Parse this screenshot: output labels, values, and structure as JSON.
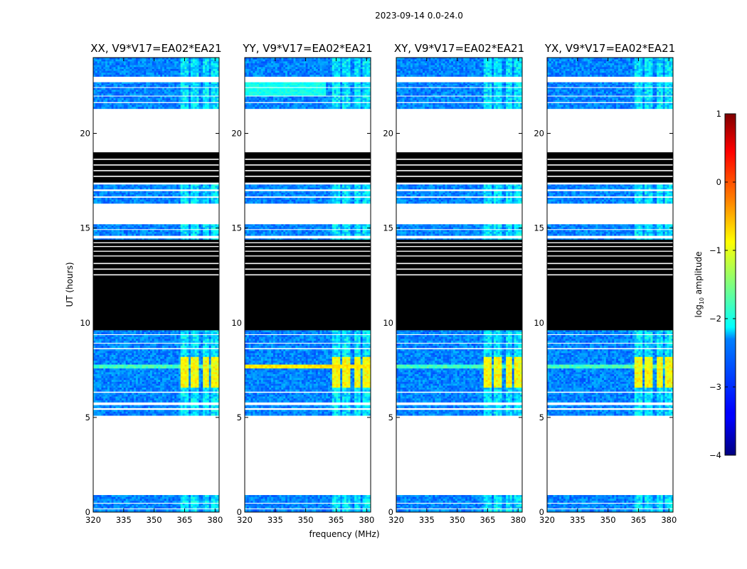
{
  "chart_data": {
    "type": "heatmap",
    "suptitle": "2023-09-14 0.0-24.0",
    "xlabel": "frequency (MHz)",
    "ylabel": "UT (hours)",
    "xlim": [
      320,
      382
    ],
    "ylim": [
      0,
      24
    ],
    "xticks": [
      "320",
      "335",
      "350",
      "365",
      "380"
    ],
    "xtick_values": [
      320,
      335,
      350,
      365,
      380
    ],
    "yticks": [
      "0",
      "5",
      "10",
      "15",
      "20"
    ],
    "ytick_values": [
      0,
      5,
      10,
      15,
      20
    ],
    "panels": [
      {
        "title": "XX, V9*V17=EA02*EA21",
        "polarization": "XX"
      },
      {
        "title": "YY, V9*V17=EA02*EA21",
        "polarization": "YY"
      },
      {
        "title": "XY, V9*V17=EA02*EA21",
        "polarization": "XY"
      },
      {
        "title": "YX, V9*V17=EA02*EA21",
        "polarization": "YX"
      }
    ],
    "colorbar": {
      "label": "log10 amplitude",
      "label_base": "log",
      "label_sub": "10",
      "label_rest": " amplitude",
      "min": -4,
      "max": 1,
      "ticks": [
        "1",
        "0",
        "−1",
        "−2",
        "−3",
        "−4"
      ],
      "tick_values": [
        1,
        0,
        -1,
        -2,
        -3,
        -4
      ],
      "colormap": "jet"
    },
    "flagged_time_ranges_hours": [
      [
        0.9,
        5.1
      ],
      [
        9.6,
        12.5
      ],
      [
        15.2,
        16.3
      ],
      [
        19.0,
        21.3
      ],
      [
        22.7,
        23.0
      ]
    ],
    "rfi_freq_bands_mhz": [
      [
        363,
        367
      ],
      [
        368.5,
        372.5
      ],
      [
        374,
        377.5
      ],
      [
        378.5,
        382
      ]
    ],
    "rfi_time_range_hours": [
      6.8,
      8.4
    ],
    "rfi_peak_log_amplitude": -0.6,
    "broadband_event_hours": [
      7.2,
      7.4
    ]
  }
}
